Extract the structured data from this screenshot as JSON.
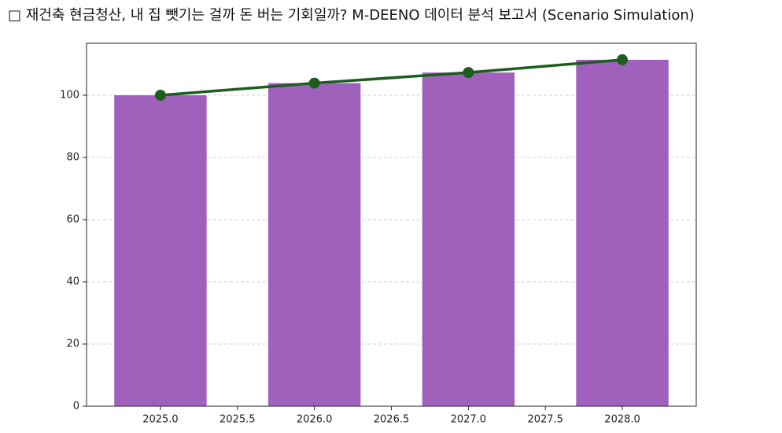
{
  "chart_data": {
    "type": "bar",
    "title": "□ 재건축 현금청산, 내 집 뺏기는 걸까 돈 버는 기회일까? M-DEENO 데이터 분석 보고서 (Scenario Simulation)",
    "x": [
      2025,
      2026,
      2027,
      2028
    ],
    "series": [
      {
        "type": "bar",
        "color": "#a061bd",
        "values": [
          100,
          103.9,
          107.3,
          111.4
        ]
      },
      {
        "type": "line",
        "color": "#1b5e20",
        "values": [
          100,
          103.9,
          107.3,
          111.4
        ]
      }
    ],
    "xlim": [
      2024.52,
      2028.48
    ],
    "xticks": [
      {
        "value": 2025,
        "label": "2025.0"
      },
      {
        "value": 2025.5,
        "label": "2025.5"
      },
      {
        "value": 2026,
        "label": "2026.0"
      },
      {
        "value": 2026.5,
        "label": "2026.5"
      },
      {
        "value": 2027,
        "label": "2027.0"
      },
      {
        "value": 2027.5,
        "label": "2027.5"
      },
      {
        "value": 2028,
        "label": "2028.0"
      }
    ],
    "ylim": [
      0,
      116.7
    ],
    "yticks": [
      0,
      20,
      40,
      60,
      80,
      100
    ],
    "grid": true
  }
}
